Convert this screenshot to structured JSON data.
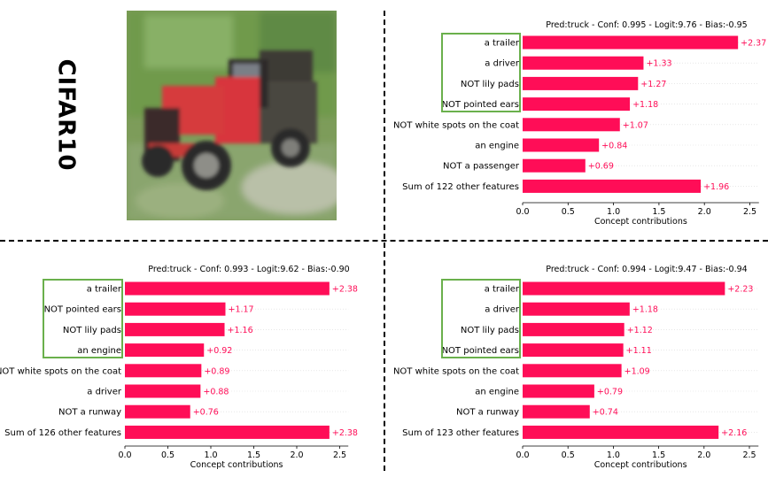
{
  "dataset_label": "CIFAR10",
  "image": {
    "alt": "truck"
  },
  "colors": {
    "bar": "#ff0d57",
    "value_text": "#ff0d57",
    "highlight_box": "#6ab04c",
    "text": "#000000"
  },
  "chart_data": [
    {
      "type": "bar",
      "orientation": "horizontal",
      "title": "Pred:truck - Conf: 0.995 - Logit:9.76 - Bias:-0.95",
      "xlabel": "Concept contributions",
      "xlim": [
        0,
        2.6
      ],
      "xticks": [
        0.0,
        0.5,
        1.0,
        1.5,
        2.0,
        2.5
      ],
      "categories": [
        "a trailer",
        "a driver",
        "NOT lily pads",
        "NOT pointed ears",
        "NOT white spots on the coat",
        "an engine",
        "NOT a passenger",
        "Sum of 122 other features"
      ],
      "values": [
        2.37,
        1.33,
        1.27,
        1.18,
        1.07,
        0.84,
        0.69,
        1.96
      ],
      "value_labels": [
        "+2.37",
        "+1.33",
        "+1.27",
        "+1.18",
        "+1.07",
        "+0.84",
        "+0.69",
        "+1.96"
      ],
      "highlighted_count": 4
    },
    {
      "type": "bar",
      "orientation": "horizontal",
      "title": "Pred:truck - Conf: 0.993 - Logit:9.62 - Bias:-0.90",
      "xlabel": "Concept contributions",
      "xlim": [
        0,
        2.6
      ],
      "xticks": [
        0.0,
        0.5,
        1.0,
        1.5,
        2.0,
        2.5
      ],
      "categories": [
        "a trailer",
        "NOT pointed ears",
        "NOT lily pads",
        "an engine",
        "NOT white spots on the coat",
        "a driver",
        "NOT a runway",
        "Sum of 126 other features"
      ],
      "values": [
        2.38,
        1.17,
        1.16,
        0.92,
        0.89,
        0.88,
        0.76,
        2.38
      ],
      "value_labels": [
        "+2.38",
        "+1.17",
        "+1.16",
        "+0.92",
        "+0.89",
        "+0.88",
        "+0.76",
        "+2.38"
      ],
      "highlighted_count": 4
    },
    {
      "type": "bar",
      "orientation": "horizontal",
      "title": "Pred:truck - Conf: 0.994 - Logit:9.47 - Bias:-0.94",
      "xlabel": "Concept contributions",
      "xlim": [
        0,
        2.6
      ],
      "xticks": [
        0.0,
        0.5,
        1.0,
        1.5,
        2.0,
        2.5
      ],
      "categories": [
        "a trailer",
        "a driver",
        "NOT lily pads",
        "NOT pointed ears",
        "NOT white spots on the coat",
        "an engine",
        "NOT a runway",
        "Sum of 123 other features"
      ],
      "values": [
        2.23,
        1.18,
        1.12,
        1.11,
        1.09,
        0.79,
        0.74,
        2.16
      ],
      "value_labels": [
        "+2.23",
        "+1.18",
        "+1.12",
        "+1.11",
        "+1.09",
        "+0.79",
        "+0.74",
        "+2.16"
      ],
      "highlighted_count": 4
    }
  ]
}
